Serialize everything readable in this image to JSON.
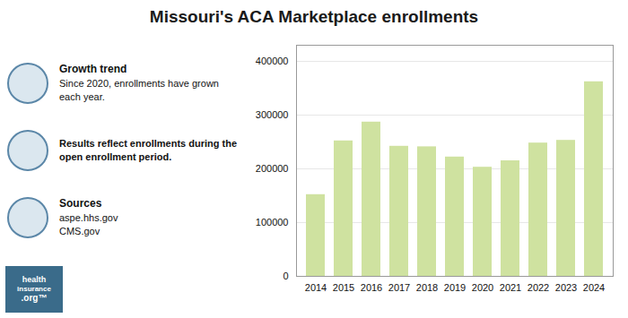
{
  "chart_data": {
    "type": "bar",
    "title": "Missouri's ACA Marketplace enrollments",
    "categories": [
      "2014",
      "2015",
      "2016",
      "2017",
      "2018",
      "2019",
      "2020",
      "2021",
      "2022",
      "2023",
      "2024"
    ],
    "values": [
      152000,
      252000,
      287000,
      242000,
      241000,
      222000,
      203000,
      215000,
      248000,
      253000,
      362000
    ],
    "color": "#cfe2a0",
    "ylim": [
      0,
      430000
    ],
    "yticks": [
      0,
      100000,
      200000,
      300000,
      400000
    ],
    "grid": true,
    "annotations": [
      {
        "title": "Growth trend",
        "text": "Since 2020, enrollments have grown\neach year."
      },
      {
        "text": "Results reflect enrollments during the\nopen enrollment period."
      },
      {
        "title": "Sources",
        "text": "aspe.hhs.gov\nCMS.gov"
      }
    ],
    "logo": [
      "health",
      "insurance",
      ".org™"
    ]
  }
}
